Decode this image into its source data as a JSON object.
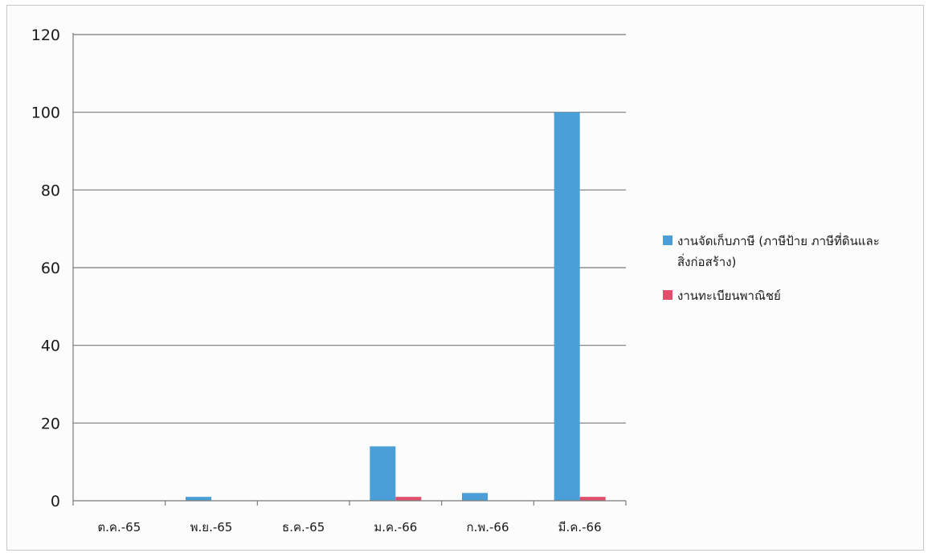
{
  "chart_data": {
    "type": "bar",
    "title": "",
    "xlabel": "",
    "ylabel": "",
    "categories": [
      "ต.ค.-65",
      "พ.ย.-65",
      "ธ.ค.-65",
      "ม.ค.-66",
      "ก.พ.-66",
      "มี.ค.-66"
    ],
    "ylim": [
      0,
      120
    ],
    "yticks": [
      "0",
      "20",
      "40",
      "60",
      "80",
      "100",
      "120"
    ],
    "grid": true,
    "legend_position": "right",
    "series": [
      {
        "name": "งานจัดเก็บภาษี (ภาษีป้าย ภาษีที่ดินและสิ่งก่อสร้าง)",
        "legend_lines": [
          "งานจัดเก็บภาษี (ภาษีป้าย ภาษีที่ดินและ",
          "สิ่งก่อสร้าง)"
        ],
        "color": "#4a9fd8",
        "values": [
          0,
          1,
          0,
          14,
          2,
          100
        ]
      },
      {
        "name": "งานทะเบียนพาณิชย์",
        "legend_lines": [
          "งานทะเบียนพาณิชย์"
        ],
        "color": "#e0506a",
        "values": [
          0,
          0,
          0,
          1,
          0,
          1
        ]
      }
    ]
  }
}
